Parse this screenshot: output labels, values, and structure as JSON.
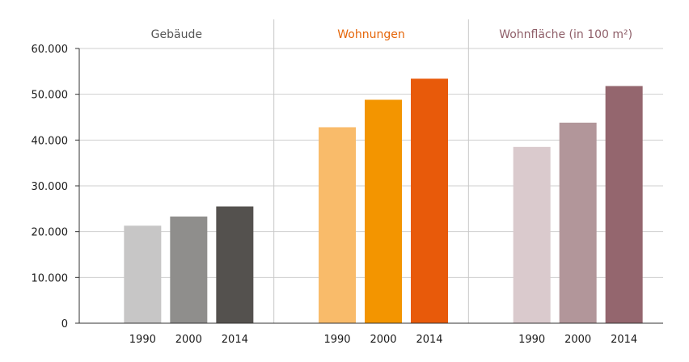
{
  "chart_data": {
    "type": "bar",
    "ylim": [
      0,
      60000
    ],
    "yticks": [
      0,
      10000,
      20000,
      30000,
      40000,
      50000,
      60000
    ],
    "ytick_labels": [
      "0",
      "10.000",
      "20.000",
      "30.000",
      "40.000",
      "50.000",
      "60.000"
    ],
    "grid": true,
    "groups": [
      {
        "title": "Gebäude",
        "title_color": "#555555",
        "categories": [
          "1990",
          "2000",
          "2014"
        ],
        "values": [
          21300,
          23300,
          25500
        ],
        "colors": [
          "#c7c6c6",
          "#8f8e8c",
          "#54514e"
        ]
      },
      {
        "title": "Wohnungen",
        "title_color": "#e5660a",
        "categories": [
          "1990",
          "2000",
          "2014"
        ],
        "values": [
          42800,
          48800,
          53400
        ],
        "colors": [
          "#f9bb6a",
          "#f39500",
          "#e85a0a"
        ]
      },
      {
        "title": "Wohnfläche (in 100 m²)",
        "title_color": "#8f5f69",
        "categories": [
          "1990",
          "2000",
          "2014"
        ],
        "values": [
          38500,
          43800,
          51800
        ],
        "colors": [
          "#dacacd",
          "#b2969a",
          "#94666e"
        ]
      }
    ]
  }
}
